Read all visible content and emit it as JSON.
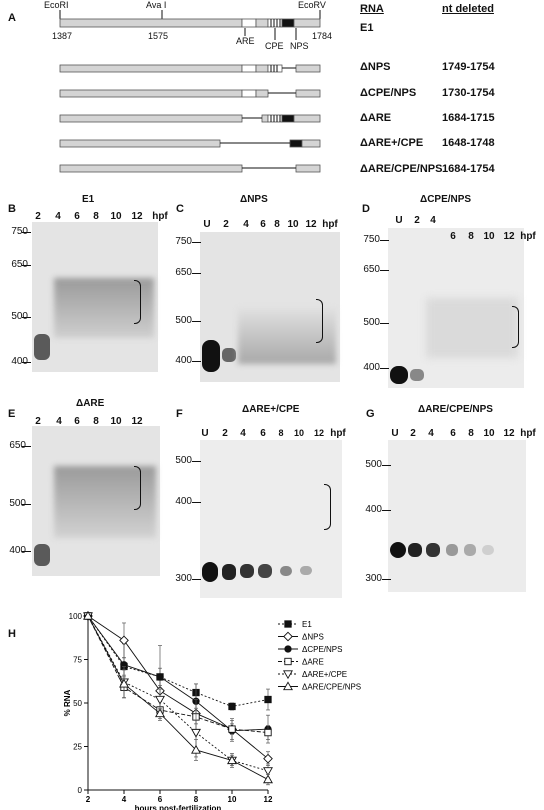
{
  "panel_a": {
    "letter": "A",
    "restriction_sites": [
      "EcoRI",
      "Ava I",
      "EcoRV"
    ],
    "positions": [
      "1387",
      "1575",
      "1784"
    ],
    "elements": [
      "ARE",
      "CPE",
      "NPS"
    ],
    "col_rna": "RNA",
    "col_nt": "nt deleted",
    "constructs": [
      {
        "name": "E1",
        "nt": ""
      },
      {
        "name": "ΔNPS",
        "nt": "1749-1754"
      },
      {
        "name": "ΔCPE/NPS",
        "nt": "1730-1754"
      },
      {
        "name": "ΔARE",
        "nt": "1684-1715"
      },
      {
        "name": "ΔARE+/CPE",
        "nt": "1648-1748"
      },
      {
        "name": "ΔARE/CPE/NPS",
        "nt": "1684-1754"
      }
    ]
  },
  "gels": [
    {
      "letter": "B",
      "title": "E1",
      "lanes": [
        "2",
        "4",
        "6",
        "8",
        "10",
        "12"
      ],
      "unit": "",
      "markers": [
        "750",
        "650",
        "500",
        "400"
      ]
    },
    {
      "letter": "C",
      "title": "ΔNPS",
      "lanes": [
        "U",
        "2",
        "4",
        "6",
        "8",
        "10",
        "12"
      ],
      "unit": "hpf",
      "markers": [
        "750",
        "650",
        "500",
        "400"
      ]
    },
    {
      "letter": "D",
      "title": "ΔCPE/NPS",
      "lanes": [
        "U",
        "2",
        "4",
        "6",
        "8",
        "10",
        "12"
      ],
      "unit": "hpf",
      "markers": [
        "750",
        "650",
        "500",
        "400"
      ]
    },
    {
      "letter": "E",
      "title": "ΔARE",
      "lanes": [
        "2",
        "4",
        "6",
        "8",
        "10",
        "12"
      ],
      "unit": "",
      "markers": [
        "650",
        "500",
        "400"
      ]
    },
    {
      "letter": "F",
      "title": "ΔARE+/CPE",
      "lanes": [
        "U",
        "2",
        "4",
        "6",
        "8",
        "10",
        "12"
      ],
      "unit": "hpf",
      "markers": [
        "500",
        "400",
        "300"
      ]
    },
    {
      "letter": "G",
      "title": "ΔARE/CPE/NPS",
      "lanes": [
        "U",
        "2",
        "4",
        "6",
        "8",
        "10",
        "12"
      ],
      "unit": "hpf",
      "markers": [
        "500",
        "400",
        "300"
      ]
    }
  ],
  "gel_b_unit": "hpf",
  "panel_h_letter": "H",
  "chart_data": {
    "type": "line",
    "xlabel": "hours post-fertilization",
    "ylabel": "% RNA",
    "x": [
      2,
      4,
      6,
      8,
      10,
      12
    ],
    "xlim": [
      2,
      12
    ],
    "ylim": [
      0,
      100
    ],
    "xticks": [
      2,
      4,
      6,
      8,
      10,
      12
    ],
    "yticks": [
      0,
      25,
      50,
      75,
      100
    ],
    "legend_position": "top-right",
    "series": [
      {
        "name": "E1",
        "values": [
          100,
          71,
          65,
          56,
          48,
          52
        ],
        "err": [
          0,
          5,
          5,
          5,
          2,
          6
        ],
        "marker": "square-filled",
        "line": "dotted"
      },
      {
        "name": "ΔNPS",
        "values": [
          100,
          86,
          57,
          44,
          35,
          18
        ],
        "err": [
          0,
          10,
          6,
          6,
          6,
          4
        ],
        "marker": "diamond-open",
        "line": "solid"
      },
      {
        "name": "ΔCPE/NPS",
        "values": [
          100,
          72,
          65,
          51,
          34,
          35
        ],
        "err": [
          0,
          12,
          18,
          10,
          6,
          8
        ],
        "marker": "circle-filled",
        "line": "solid"
      },
      {
        "name": "ΔARE",
        "values": [
          100,
          59,
          46,
          42,
          35,
          33
        ],
        "err": [
          0,
          6,
          6,
          10,
          3,
          4
        ],
        "marker": "square-open",
        "line": "dashed"
      },
      {
        "name": "ΔARE+/CPE",
        "values": [
          100,
          62,
          52,
          33,
          17,
          11
        ],
        "err": [
          0,
          9,
          6,
          14,
          3,
          4
        ],
        "marker": "triangle-down-open",
        "line": "dotted"
      },
      {
        "name": "ΔARE/CPE/NPS",
        "values": [
          100,
          61,
          44,
          23,
          17,
          6
        ],
        "err": [
          0,
          8,
          3,
          6,
          4,
          3
        ],
        "marker": "triangle-up-open",
        "line": "solid"
      }
    ]
  }
}
